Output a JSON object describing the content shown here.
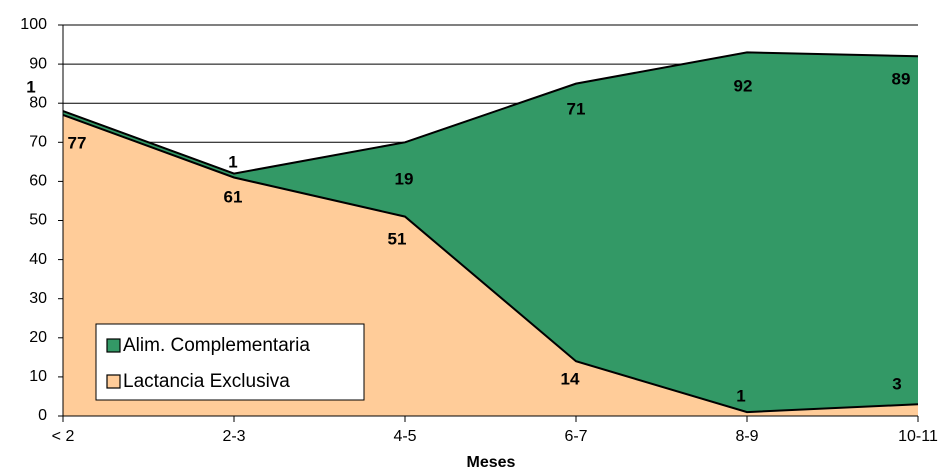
{
  "chart_data": {
    "type": "area",
    "stacked": true,
    "categories": [
      "< 2",
      "2-3",
      "4-5",
      "6-7",
      "8-9",
      "10-11"
    ],
    "series": [
      {
        "name": "Lactancia Exclusiva",
        "values": [
          77,
          61,
          51,
          14,
          1,
          3
        ],
        "color": "#FFCC99"
      },
      {
        "name": "Alim. Complementaria",
        "values": [
          1,
          1,
          19,
          71,
          92,
          89
        ],
        "color": "#339966"
      }
    ],
    "xlabel": "Meses",
    "ylabel": "",
    "ylim": [
      0,
      100
    ],
    "yticks": [
      0,
      10,
      20,
      30,
      40,
      50,
      60,
      70,
      80,
      90,
      100
    ],
    "grid": true,
    "legend_position": "bottom-left",
    "legend_order": [
      "Alim. Complementaria",
      "Lactancia Exclusiva"
    ]
  }
}
